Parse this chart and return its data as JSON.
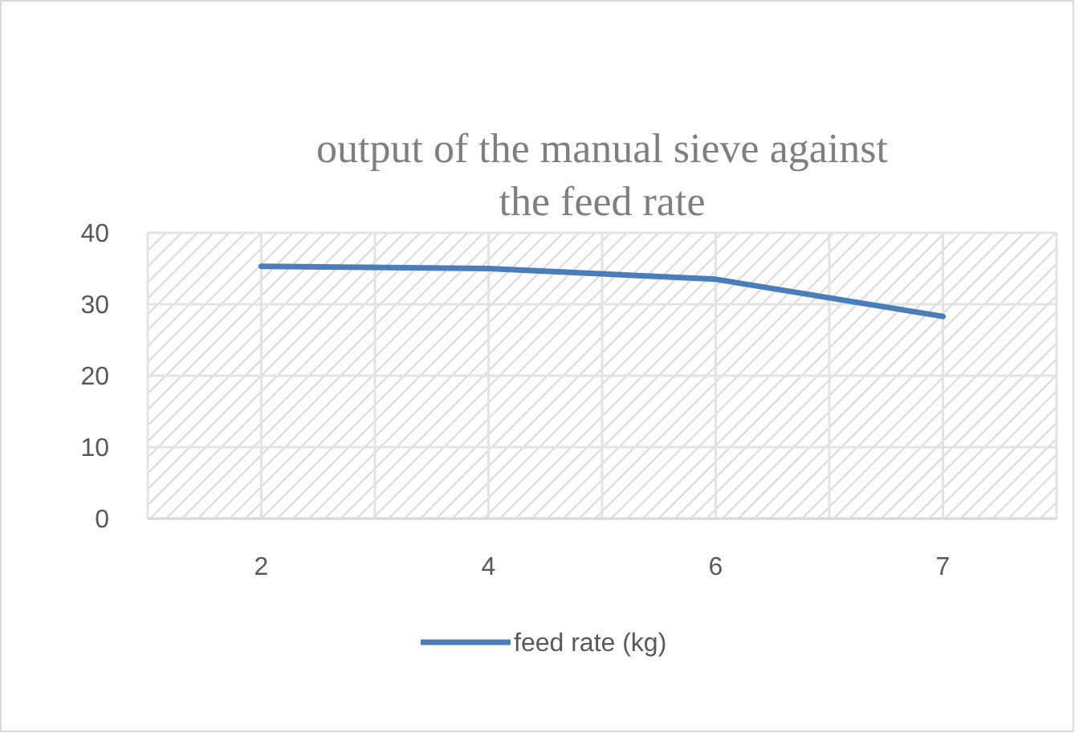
{
  "chart_data": {
    "type": "line",
    "title": "output of the manual sieve against the feed rate",
    "categories": [
      "2",
      "4",
      "6",
      "7"
    ],
    "series": [
      {
        "name": "feed rate (kg)",
        "color": "#4a7ebb",
        "values": [
          35.3,
          35,
          33.5,
          28.3
        ]
      }
    ],
    "ylim": [
      0,
      40
    ],
    "yticks": [
      0,
      10,
      20,
      30,
      40
    ],
    "grid": true,
    "legend": "bottom",
    "marker": "none",
    "line_style": "solid"
  }
}
